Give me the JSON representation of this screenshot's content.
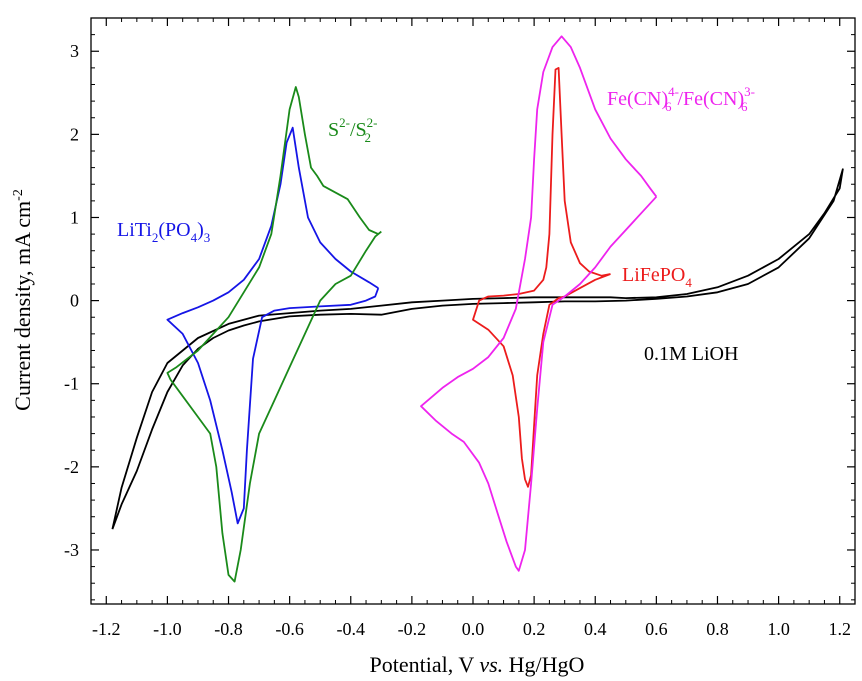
{
  "chart_data": {
    "type": "line",
    "xlabel_parts": [
      "Potential, V ",
      "vs.",
      " Hg/HgO"
    ],
    "ylabel_parts": [
      "Current density, mA cm",
      "-2"
    ],
    "xlim": [
      -1.25,
      1.25
    ],
    "ylim": [
      -3.65,
      3.4
    ],
    "x_ticks": [
      -1.2,
      -1.0,
      -0.8,
      -0.6,
      -0.4,
      -0.2,
      0.0,
      0.2,
      0.4,
      0.6,
      0.8,
      1.0,
      1.2
    ],
    "x_tick_labels": [
      "-1.2",
      "-1.0",
      "-0.8",
      "-0.6",
      "-0.4",
      "-0.2",
      "0.0",
      "0.2",
      "0.4",
      "0.6",
      "0.8",
      "1.0",
      "1.2"
    ],
    "y_ticks": [
      -3,
      -2,
      -1,
      0,
      1,
      2,
      3
    ],
    "y_tick_labels": [
      "-3",
      "-2",
      "-1",
      "0",
      "1",
      "2",
      "3"
    ],
    "grid": false,
    "colors": {
      "black": "#000000",
      "blue": "#1515e6",
      "green": "#1a8a1a",
      "red": "#ec1c1c",
      "magenta": "#ee24ee"
    },
    "annotations": {
      "liti": {
        "parts": [
          "LiTi",
          "2",
          "(PO",
          "4",
          ")",
          "3"
        ],
        "color": "#1515e6"
      },
      "sulfide": {
        "parts": [
          "S",
          "2-",
          "/S",
          "2-",
          "2"
        ],
        "color": "#1a8a1a"
      },
      "ferro": {
        "parts": [
          "Fe(CN)",
          "4-",
          "6",
          "/Fe(CN)",
          "3-",
          "6"
        ],
        "color": "#ee24ee"
      },
      "lifepo4": {
        "parts": [
          "LiFePO",
          "4"
        ],
        "color": "#ec1c1c"
      },
      "lioh": {
        "text": "0.1M LiOH",
        "color": "#000000"
      }
    },
    "series": [
      {
        "color": "#000000",
        "points": [
          [
            -1.18,
            -2.75
          ],
          [
            -1.15,
            -2.45
          ],
          [
            -1.1,
            -2.05
          ],
          [
            -1.05,
            -1.55
          ],
          [
            -1.0,
            -1.1
          ],
          [
            -0.95,
            -0.78
          ],
          [
            -0.9,
            -0.58
          ],
          [
            -0.85,
            -0.45
          ],
          [
            -0.8,
            -0.36
          ],
          [
            -0.75,
            -0.3
          ],
          [
            -0.7,
            -0.25
          ],
          [
            -0.6,
            -0.19
          ],
          [
            -0.5,
            -0.17
          ],
          [
            -0.4,
            -0.16
          ],
          [
            -0.3,
            -0.17
          ],
          [
            -0.2,
            -0.1
          ],
          [
            -0.1,
            -0.06
          ],
          [
            0.0,
            -0.04
          ],
          [
            0.1,
            -0.03
          ],
          [
            0.2,
            -0.02
          ],
          [
            0.3,
            -0.01
          ],
          [
            0.4,
            -0.01
          ],
          [
            0.5,
            0.0
          ],
          [
            0.6,
            0.02
          ],
          [
            0.7,
            0.05
          ],
          [
            0.8,
            0.1
          ],
          [
            0.9,
            0.2
          ],
          [
            1.0,
            0.4
          ],
          [
            1.1,
            0.75
          ],
          [
            1.18,
            1.2
          ],
          [
            1.21,
            1.58
          ],
          [
            1.2,
            1.35
          ],
          [
            1.15,
            1.05
          ],
          [
            1.1,
            0.8
          ],
          [
            1.0,
            0.5
          ],
          [
            0.9,
            0.3
          ],
          [
            0.8,
            0.16
          ],
          [
            0.7,
            0.08
          ],
          [
            0.6,
            0.04
          ],
          [
            0.5,
            0.03
          ],
          [
            0.45,
            0.04
          ],
          [
            0.35,
            0.04
          ],
          [
            0.2,
            0.04
          ],
          [
            0.1,
            0.03
          ],
          [
            0.0,
            0.02
          ],
          [
            -0.1,
            0.0
          ],
          [
            -0.2,
            -0.02
          ],
          [
            -0.3,
            -0.06
          ],
          [
            -0.4,
            -0.1
          ],
          [
            -0.5,
            -0.12
          ],
          [
            -0.6,
            -0.15
          ],
          [
            -0.7,
            -0.18
          ],
          [
            -0.8,
            -0.28
          ],
          [
            -0.9,
            -0.45
          ],
          [
            -1.0,
            -0.75
          ],
          [
            -1.05,
            -1.1
          ],
          [
            -1.1,
            -1.65
          ],
          [
            -1.15,
            -2.25
          ],
          [
            -1.18,
            -2.75
          ]
        ]
      },
      {
        "color": "#1515e6",
        "points": [
          [
            -0.31,
            0.15
          ],
          [
            -0.34,
            0.22
          ],
          [
            -0.4,
            0.35
          ],
          [
            -0.45,
            0.5
          ],
          [
            -0.5,
            0.7
          ],
          [
            -0.54,
            1.0
          ],
          [
            -0.57,
            1.6
          ],
          [
            -0.59,
            2.08
          ],
          [
            -0.61,
            1.9
          ],
          [
            -0.63,
            1.4
          ],
          [
            -0.66,
            0.9
          ],
          [
            -0.7,
            0.5
          ],
          [
            -0.75,
            0.25
          ],
          [
            -0.8,
            0.1
          ],
          [
            -0.85,
            0.0
          ],
          [
            -0.9,
            -0.08
          ],
          [
            -0.95,
            -0.15
          ],
          [
            -1.0,
            -0.23
          ],
          [
            -0.95,
            -0.4
          ],
          [
            -0.9,
            -0.75
          ],
          [
            -0.86,
            -1.2
          ],
          [
            -0.82,
            -1.8
          ],
          [
            -0.79,
            -2.3
          ],
          [
            -0.77,
            -2.68
          ],
          [
            -0.75,
            -2.5
          ],
          [
            -0.74,
            -1.8
          ],
          [
            -0.72,
            -0.7
          ],
          [
            -0.69,
            -0.2
          ],
          [
            -0.65,
            -0.12
          ],
          [
            -0.6,
            -0.09
          ],
          [
            -0.5,
            -0.07
          ],
          [
            -0.4,
            -0.05
          ],
          [
            -0.35,
            0.0
          ],
          [
            -0.32,
            0.05
          ],
          [
            -0.31,
            0.15
          ]
        ]
      },
      {
        "color": "#1a8a1a",
        "points": [
          [
            -0.3,
            0.83
          ],
          [
            -0.32,
            0.77
          ],
          [
            -0.35,
            0.6
          ],
          [
            -0.4,
            0.3
          ],
          [
            -0.45,
            0.2
          ],
          [
            -0.5,
            0.0
          ],
          [
            -0.55,
            -0.4
          ],
          [
            -0.6,
            -0.8
          ],
          [
            -0.65,
            -1.2
          ],
          [
            -0.7,
            -1.6
          ],
          [
            -0.73,
            -2.2
          ],
          [
            -0.76,
            -3.0
          ],
          [
            -0.78,
            -3.38
          ],
          [
            -0.8,
            -3.3
          ],
          [
            -0.82,
            -2.8
          ],
          [
            -0.84,
            -2.0
          ],
          [
            -0.86,
            -1.6
          ],
          [
            -0.9,
            -1.4
          ],
          [
            -0.95,
            -1.15
          ],
          [
            -0.99,
            -0.95
          ],
          [
            -1.0,
            -0.87
          ],
          [
            -0.97,
            -0.8
          ],
          [
            -0.9,
            -0.6
          ],
          [
            -0.85,
            -0.4
          ],
          [
            -0.8,
            -0.2
          ],
          [
            -0.75,
            0.1
          ],
          [
            -0.7,
            0.4
          ],
          [
            -0.66,
            0.8
          ],
          [
            -0.63,
            1.5
          ],
          [
            -0.6,
            2.3
          ],
          [
            -0.58,
            2.57
          ],
          [
            -0.57,
            2.45
          ],
          [
            -0.55,
            2.0
          ],
          [
            -0.53,
            1.6
          ],
          [
            -0.51,
            1.5
          ],
          [
            -0.49,
            1.38
          ],
          [
            -0.45,
            1.3
          ],
          [
            -0.41,
            1.22
          ],
          [
            -0.37,
            1.0
          ],
          [
            -0.34,
            0.85
          ],
          [
            -0.31,
            0.8
          ],
          [
            -0.3,
            0.83
          ]
        ]
      },
      {
        "color": "#ec1c1c",
        "points": [
          [
            0.45,
            0.32
          ],
          [
            0.42,
            0.3
          ],
          [
            0.38,
            0.35
          ],
          [
            0.35,
            0.45
          ],
          [
            0.32,
            0.7
          ],
          [
            0.3,
            1.2
          ],
          [
            0.29,
            2.0
          ],
          [
            0.28,
            2.8
          ],
          [
            0.27,
            2.78
          ],
          [
            0.26,
            2.0
          ],
          [
            0.25,
            0.8
          ],
          [
            0.24,
            0.4
          ],
          [
            0.23,
            0.25
          ],
          [
            0.2,
            0.12
          ],
          [
            0.15,
            0.08
          ],
          [
            0.1,
            0.06
          ],
          [
            0.05,
            0.05
          ],
          [
            0.02,
            0.0
          ],
          [
            0.0,
            -0.23
          ],
          [
            0.05,
            -0.35
          ],
          [
            0.1,
            -0.55
          ],
          [
            0.13,
            -0.9
          ],
          [
            0.15,
            -1.4
          ],
          [
            0.16,
            -1.9
          ],
          [
            0.17,
            -2.15
          ],
          [
            0.18,
            -2.24
          ],
          [
            0.19,
            -2.1
          ],
          [
            0.2,
            -1.5
          ],
          [
            0.21,
            -0.9
          ],
          [
            0.23,
            -0.4
          ],
          [
            0.25,
            -0.05
          ],
          [
            0.28,
            0.03
          ],
          [
            0.3,
            0.05
          ],
          [
            0.35,
            0.15
          ],
          [
            0.4,
            0.25
          ],
          [
            0.45,
            0.32
          ]
        ]
      },
      {
        "color": "#ee24ee",
        "points": [
          [
            0.6,
            1.25
          ],
          [
            0.58,
            1.35
          ],
          [
            0.55,
            1.5
          ],
          [
            0.5,
            1.7
          ],
          [
            0.45,
            1.95
          ],
          [
            0.4,
            2.3
          ],
          [
            0.35,
            2.8
          ],
          [
            0.32,
            3.05
          ],
          [
            0.29,
            3.18
          ],
          [
            0.26,
            3.05
          ],
          [
            0.23,
            2.75
          ],
          [
            0.21,
            2.3
          ],
          [
            0.2,
            1.7
          ],
          [
            0.19,
            1.0
          ],
          [
            0.17,
            0.5
          ],
          [
            0.14,
            -0.1
          ],
          [
            0.1,
            -0.45
          ],
          [
            0.05,
            -0.68
          ],
          [
            0.0,
            -0.82
          ],
          [
            -0.05,
            -0.92
          ],
          [
            -0.1,
            -1.05
          ],
          [
            -0.17,
            -1.27
          ],
          [
            -0.12,
            -1.45
          ],
          [
            -0.07,
            -1.6
          ],
          [
            -0.03,
            -1.7
          ],
          [
            0.02,
            -1.95
          ],
          [
            0.05,
            -2.2
          ],
          [
            0.08,
            -2.55
          ],
          [
            0.11,
            -2.9
          ],
          [
            0.14,
            -3.2
          ],
          [
            0.15,
            -3.25
          ],
          [
            0.17,
            -3.0
          ],
          [
            0.19,
            -2.2
          ],
          [
            0.21,
            -1.3
          ],
          [
            0.23,
            -0.5
          ],
          [
            0.26,
            -0.05
          ],
          [
            0.3,
            0.05
          ],
          [
            0.35,
            0.2
          ],
          [
            0.4,
            0.4
          ],
          [
            0.45,
            0.65
          ],
          [
            0.5,
            0.85
          ],
          [
            0.55,
            1.05
          ],
          [
            0.6,
            1.25
          ]
        ]
      }
    ]
  }
}
